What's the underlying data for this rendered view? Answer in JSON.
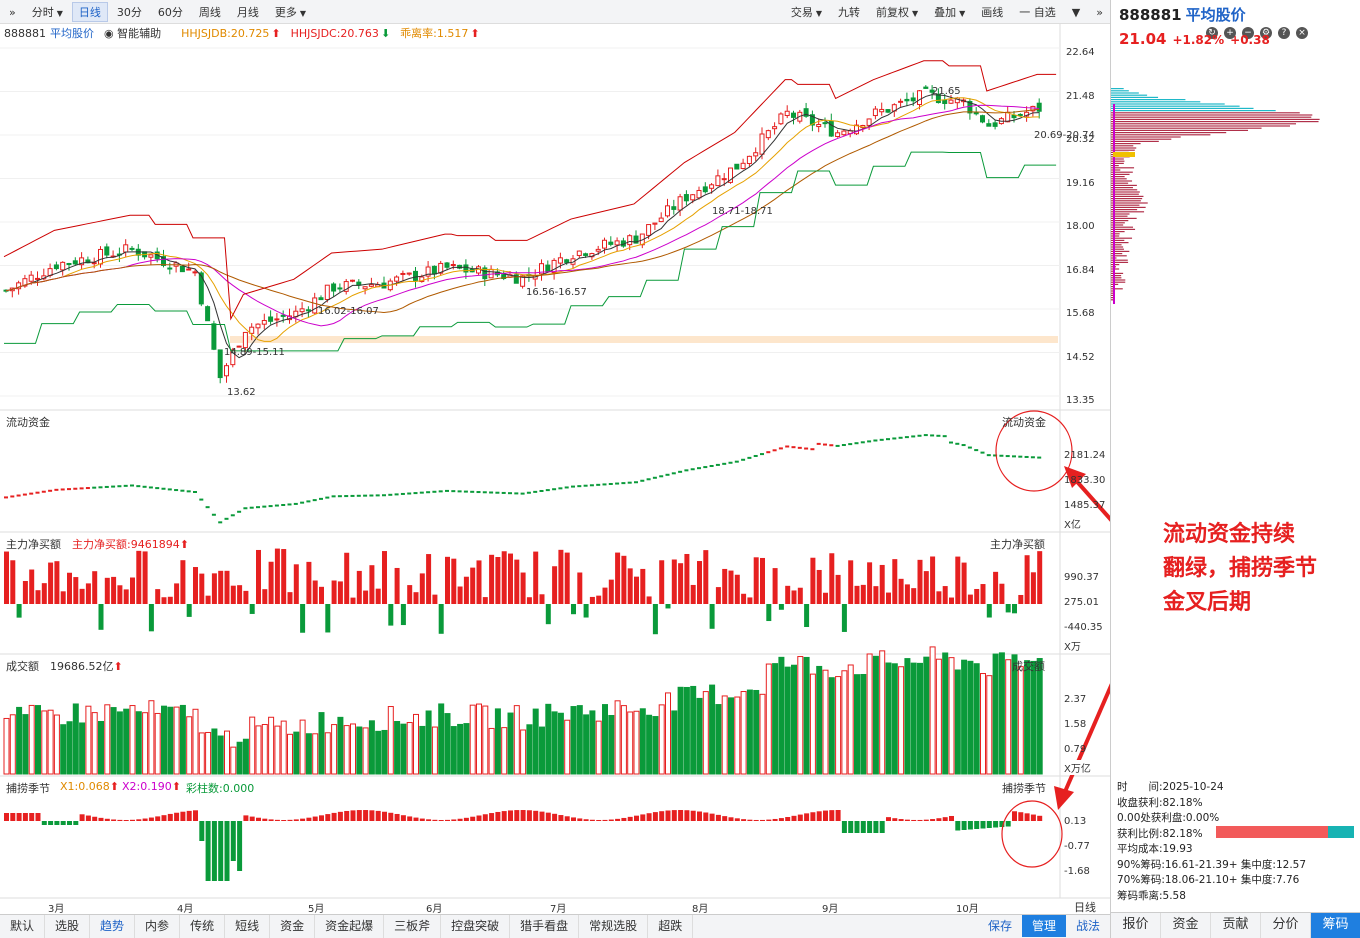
{
  "toolbar": {
    "left": [
      "分时",
      "日线",
      "30分",
      "60分",
      "周线",
      "月线",
      "更多"
    ],
    "active": "日线",
    "right": [
      "交易",
      "九转",
      "前复权",
      "叠加",
      "画线",
      "自选"
    ]
  },
  "indicator_line": {
    "code": "888881",
    "name": "平均股价",
    "assist": "智能辅助",
    "hjdb": "HHJSJDB:20.725",
    "hjdc": "HHJSJDC:20.763",
    "ratio": "乖离率:1.517"
  },
  "main_axis": [
    "22.64",
    "21.48",
    "20.32",
    "19.16",
    "18.00",
    "16.84",
    "15.68",
    "14.52",
    "13.35"
  ],
  "annotations": {
    "low": "13.62",
    "a1": "14.89-15.11",
    "a2": "16.02-16.07",
    "a3": "16.56-16.57",
    "a4": "18.71-18.71",
    "high": "21.65",
    "a5": "20.69-20.74"
  },
  "panels": {
    "liquid": {
      "label": "流动资金",
      "ticks": [
        "2181.24",
        "1833.30",
        "1485.37"
      ],
      "unit": "X亿"
    },
    "net": {
      "label": "主力净买额",
      "value": "主力净买额:9461894",
      "ticks": [
        "990.37",
        "275.01",
        "-440.35"
      ],
      "unit": "X万"
    },
    "turnover": {
      "label": "成交额",
      "value": "19686.52亿",
      "ticks": [
        "2.37",
        "1.58",
        "0.79"
      ],
      "unit": "X万亿"
    },
    "season": {
      "label": "捕捞季节",
      "x1": "X1:0.068",
      "x2": "X2:0.190",
      "cz": "彩柱数:0.000",
      "ticks": [
        "0.13",
        "-0.77",
        "-1.68"
      ]
    }
  },
  "months": [
    "3月",
    "4月",
    "5月",
    "6月",
    "7月",
    "8月",
    "9月",
    "10月"
  ],
  "bottom_tabs": [
    "默认",
    "选股",
    "趋势",
    "内参",
    "传统",
    "短线",
    "资金",
    "资金起爆",
    "三板斧",
    "控盘突破",
    "猎手看盘",
    "常规选股",
    "超跌"
  ],
  "bottom_active": "趋势",
  "bottom_right": [
    "保存",
    "管理",
    "战法"
  ],
  "period_label": "日线",
  "right": {
    "code": "888881",
    "name": "平均股价",
    "price": "21.04",
    "pct": "+1.82%",
    "chg": "+0.38",
    "stats": [
      "时　　间:2025-10-24",
      "收盘获利:82.18%",
      "0.00处获利盘:0.00%",
      "获利比例:82.18%",
      "平均成本:19.93",
      "90%筹码:16.61-21.39+ 集中度:12.57",
      "70%筹码:18.06-21.10+ 集中度:7.76",
      "筹码乖离:5.58"
    ],
    "tabs": [
      "报价",
      "资金",
      "贡献",
      "分价",
      "筹码"
    ],
    "active_tab": "筹码"
  },
  "callout": [
    "流动资金持续",
    "翻绿，捕捞季节",
    "金叉后期"
  ],
  "colors": {
    "up": "#e62020",
    "down": "#0a9a3a",
    "accent": "#1f7fe0"
  }
}
